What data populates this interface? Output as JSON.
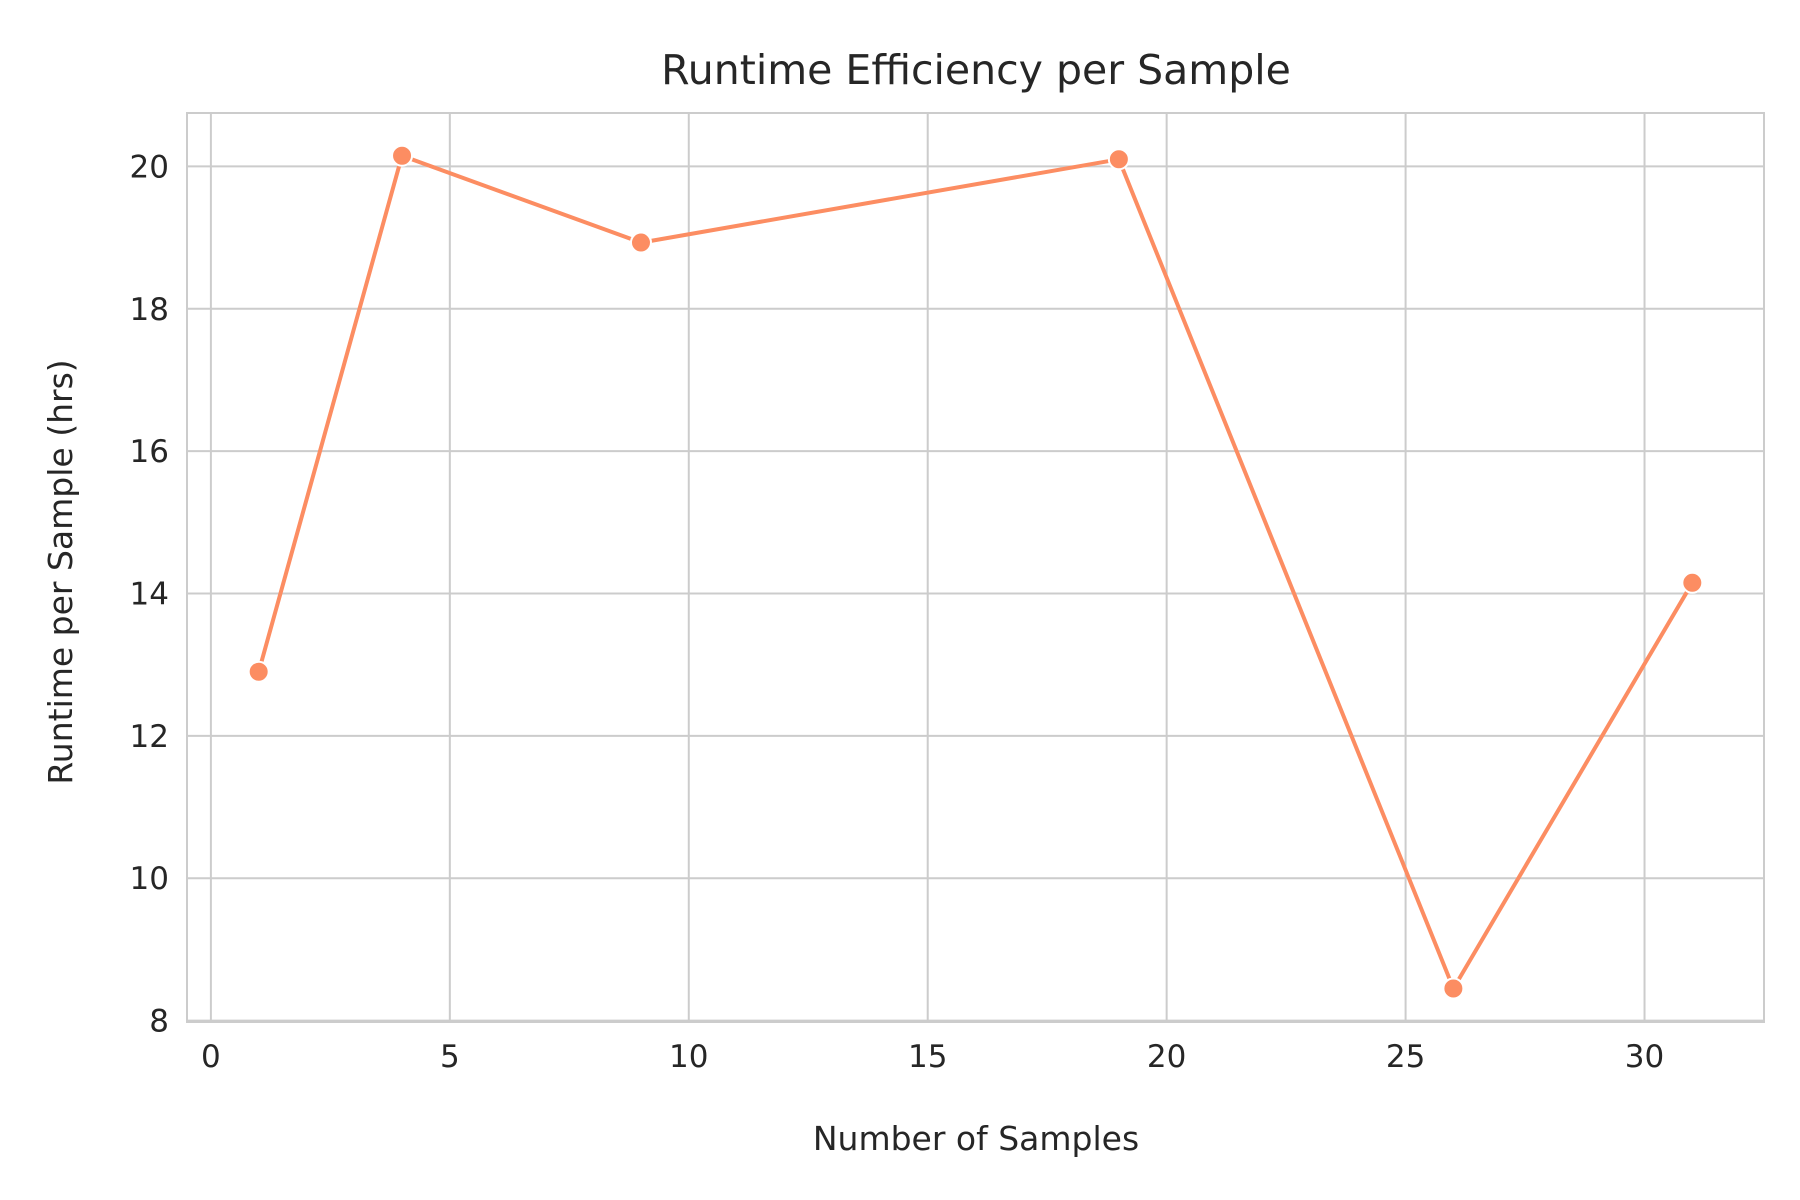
{
  "chart_data": {
    "type": "line",
    "title": "Runtime Efficiency per Sample",
    "xlabel": "Number of Samples",
    "ylabel": "Runtime per Sample (hrs)",
    "x": [
      1,
      4,
      9,
      19,
      26,
      31
    ],
    "series": [
      {
        "values": [
          12.9,
          20.15,
          18.93,
          20.1,
          8.45,
          14.15
        ],
        "color": "#fc8d62"
      }
    ],
    "xlim": [
      -0.5,
      32.5
    ],
    "ylim": [
      7.98,
      20.75
    ],
    "xticks": [
      0,
      5,
      10,
      15,
      20,
      25,
      30
    ],
    "yticks": [
      8,
      10,
      12,
      14,
      16,
      18,
      20
    ],
    "grid": true,
    "legend": "none",
    "marker": "circle",
    "colors": {
      "grid": "#cccccc",
      "spine": "#cccccc",
      "text": "#262626",
      "background": "#ffffff"
    }
  }
}
